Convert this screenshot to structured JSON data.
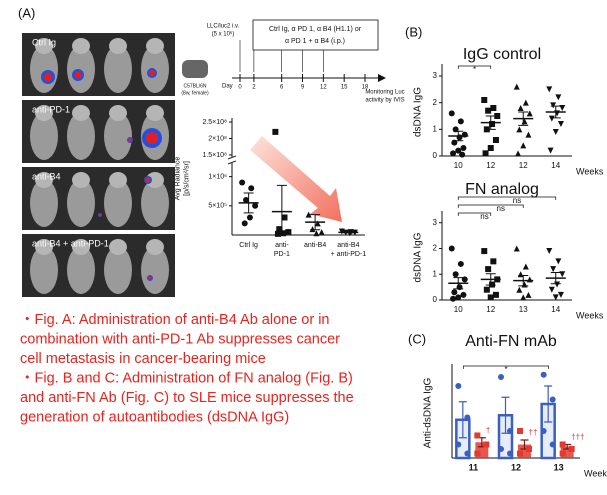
{
  "panel_a": {
    "label": "(A)",
    "image_labels": [
      "Ctrl Ig",
      "anti-PD-1",
      "anti-B4",
      "anti-B4 + anti-PD-1"
    ],
    "timeline": {
      "injection": "LLC/luc2 i.v.",
      "dose": "(5 x 10⁶)",
      "treatment": [
        "Ctrl Ig, α PD 1, α B4 (H1.1) or",
        "α PD 1 + α B4 (i.p.)"
      ],
      "monitor": [
        "Monitoring Luc",
        "activity by IVIS"
      ],
      "mouse": [
        "C57BL/6N",
        "(8w, female)"
      ],
      "day_label": "Day",
      "days": [
        0,
        2,
        6,
        9,
        12,
        15,
        18
      ]
    }
  },
  "panel_b_label": "(B)",
  "panel_c_label": "(C)",
  "caption": [
    "・Fig. A: Administration of anti-B4 Ab alone or in",
    "combination with anti-PD-1 Ab suppresses cancer",
    "cell metastasis in cancer-bearing mice",
    "・Fig. B and C: Administration of FN analog (Fig. B)",
    "and anti-FN Ab (Fig. C) to SLE mice suppresses the",
    "generation of autoantibodies (dsDNA IgG)"
  ],
  "chart_data": [
    {
      "type": "scatter",
      "ylabel": [
        "Avg Radiance",
        "[p/s/cm²/sr]"
      ],
      "categories": [
        [
          "Ctrl Ig"
        ],
        [
          "anti-",
          "PD-1"
        ],
        [
          "anti-B4"
        ],
        [
          "anti-B4",
          "+ anti-PD-1"
        ]
      ],
      "markers": [
        "circle",
        "square",
        "triangle",
        "tri-down"
      ],
      "color": "#111111",
      "ylim": [
        0,
        250000000
      ],
      "ybreak": [
        1200000,
        150000000
      ],
      "yticks": [
        {
          "value": 500000,
          "label": "5×10⁵"
        },
        {
          "value": 1000000,
          "label": "1×10⁶"
        },
        {
          "value": 150000000,
          "label": "1.5×10⁸"
        },
        {
          "value": 200000000,
          "label": "2×10⁸"
        },
        {
          "value": 250000000,
          "label": "2.5×10⁸"
        }
      ],
      "groups": [
        {
          "points": [
            900000,
            800000,
            600000,
            500000,
            300000,
            200000
          ],
          "mean": 550000,
          "sem": 170000
        },
        {
          "points": [
            220000000,
            300000,
            100000,
            50000,
            30000,
            20000
          ],
          "mean": 400000,
          "sem": 450000
        },
        {
          "points": [
            350000,
            200000,
            100000,
            50000,
            30000
          ],
          "mean": 220000,
          "sem": 130000
        },
        {
          "points": [
            60000,
            50000,
            40000,
            40000,
            30000
          ],
          "mean": 45000,
          "sem": 8000
        }
      ]
    },
    {
      "type": "scatter",
      "title": "IgG control",
      "ylabel": [
        "dsDNA IgG"
      ],
      "xlabel": "Weeks",
      "categories": [
        [
          "10"
        ],
        [
          "12"
        ],
        [
          "12"
        ],
        [
          "14"
        ]
      ],
      "markers": [
        "circle",
        "square",
        "triangle",
        "tri-down"
      ],
      "color": "#111111",
      "ylim": [
        0,
        3.3
      ],
      "yticks": [
        0,
        1,
        2,
        3
      ],
      "brackets": [
        {
          "text": "*",
          "from": 0,
          "to": 1
        }
      ],
      "groups": [
        {
          "points": [
            1.6,
            1.3,
            1.0,
            0.8,
            0.7,
            0.5,
            0.3,
            0.2,
            0.1,
            0.05
          ],
          "mean": 0.75,
          "sem": 0.18
        },
        {
          "points": [
            2.1,
            1.8,
            1.7,
            1.5,
            1.2,
            1.0,
            0.6,
            0.3,
            0.1
          ],
          "mean": 1.25,
          "sem": 0.25
        },
        {
          "points": [
            2.6,
            2.0,
            1.8,
            1.6,
            1.3,
            1.0,
            0.8,
            0.4,
            0.1
          ],
          "mean": 1.4,
          "sem": 0.25
        },
        {
          "points": [
            2.5,
            2.2,
            1.9,
            1.8,
            1.6,
            1.4,
            1.2,
            0.9,
            0.2
          ],
          "mean": 1.65,
          "sem": 0.22
        }
      ]
    },
    {
      "type": "scatter",
      "title": "FN analog",
      "ylabel": [
        "dsDNA IgG"
      ],
      "xlabel": "Weeks",
      "categories": [
        [
          "10"
        ],
        [
          "12"
        ],
        [
          "13"
        ],
        [
          "14"
        ]
      ],
      "markers": [
        "circle",
        "square",
        "triangle",
        "tri-down"
      ],
      "color": "#111111",
      "ylim": [
        0,
        3.3
      ],
      "yticks": [
        0,
        1,
        2,
        3
      ],
      "brackets": [
        {
          "text": "ns",
          "from": 0,
          "to": 1
        },
        {
          "text": "ns",
          "from": 0,
          "to": 2
        },
        {
          "text": "ns",
          "from": 0,
          "to": 3
        }
      ],
      "groups": [
        {
          "points": [
            2.0,
            1.4,
            1.0,
            0.8,
            0.5,
            0.3,
            0.2,
            0.1,
            0.05
          ],
          "mean": 0.65,
          "sem": 0.22
        },
        {
          "points": [
            1.9,
            1.5,
            1.2,
            0.8,
            0.6,
            0.4,
            0.2,
            0.1
          ],
          "mean": 0.8,
          "sem": 0.22
        },
        {
          "points": [
            2.0,
            1.3,
            1.0,
            0.8,
            0.6,
            0.4,
            0.2,
            0.1
          ],
          "mean": 0.75,
          "sem": 0.2
        },
        {
          "points": [
            1.9,
            1.5,
            1.2,
            1.0,
            0.6,
            0.4,
            0.2,
            0.1
          ],
          "mean": 0.85,
          "sem": 0.22
        }
      ]
    },
    {
      "type": "bar",
      "title": "Anti-FN mAb",
      "ylabel": [
        "Anti-dsDNA IgG"
      ],
      "xlabel": "Weeks",
      "categories": [
        "11",
        "12",
        "13"
      ],
      "ylim": [
        0,
        2
      ],
      "brackets": [
        {
          "text": "*",
          "from": 0,
          "to": 2
        }
      ],
      "series": [
        {
          "color": "#3a5fc0",
          "values": [
            0.85,
            0.95,
            1.2
          ],
          "errors": [
            0.4,
            0.4,
            0.4
          ],
          "points": [
            [
              1.6,
              0.9,
              0.3,
              0.1
            ],
            [
              1.8,
              0.6,
              0.2,
              0.1
            ],
            [
              1.85,
              1.3,
              0.6,
              0.3
            ]
          ]
        },
        {
          "color": "#e23a2e",
          "values": [
            0.35,
            0.3,
            0.25
          ],
          "errors": [
            0.1,
            0.1,
            0.05
          ],
          "points": [
            [
              0.5,
              0.3,
              0.1
            ],
            [
              0.6,
              0.2,
              0.1
            ],
            [
              0.3,
              0.2,
              0.1
            ]
          ],
          "annotations": [
            "†",
            "††",
            "†††"
          ]
        }
      ]
    }
  ]
}
